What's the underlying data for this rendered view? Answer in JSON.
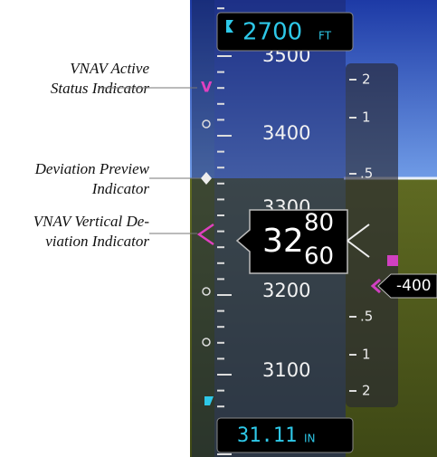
{
  "annotations": [
    {
      "lines": [
        "VNAV Active",
        "Status Indicator"
      ]
    },
    {
      "lines": [
        "Deviation Preview",
        "Indicator"
      ]
    },
    {
      "lines": [
        "VNAV Vertical De-",
        "viation Indicator"
      ]
    }
  ],
  "selected_altitude": {
    "value": "2700",
    "unit": "FT"
  },
  "altitude_tape": [
    "3500",
    "3400",
    "3300",
    "3200",
    "3100"
  ],
  "current_altitude": {
    "hundreds": "32",
    "upper": "80",
    "lower": "60"
  },
  "vsi_scale": [
    "2",
    "1",
    ".5",
    ".5",
    "1",
    "2"
  ],
  "vertical_speed": "-400",
  "barometric_setting": {
    "value": "31.11",
    "unit": "IN"
  }
}
